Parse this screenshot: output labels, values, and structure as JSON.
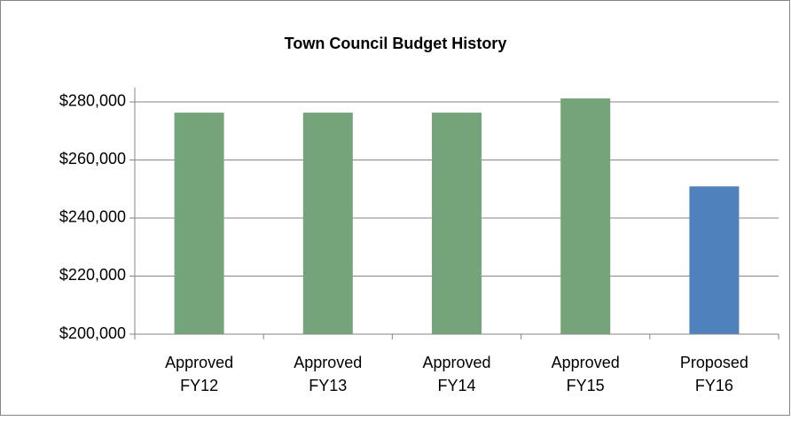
{
  "chart_data": {
    "type": "bar",
    "title": "Town Council Budget History",
    "categories": [
      "Approved FY12",
      "Approved FY13",
      "Approved FY14",
      "Approved FY15",
      "Proposed FY16"
    ],
    "values": [
      276300,
      276300,
      276300,
      281200,
      250900
    ],
    "colors": [
      "#76a47a",
      "#76a47a",
      "#76a47a",
      "#76a47a",
      "#4f81bd"
    ],
    "ylim": [
      200000,
      285000
    ],
    "yticks": [
      {
        "value": 200000,
        "label": "$200,000"
      },
      {
        "value": 220000,
        "label": "$220,000"
      },
      {
        "value": 240000,
        "label": "$240,000"
      },
      {
        "value": 260000,
        "label": "$260,000"
      },
      {
        "value": 280000,
        "label": "$280,000"
      }
    ],
    "grid": true
  }
}
